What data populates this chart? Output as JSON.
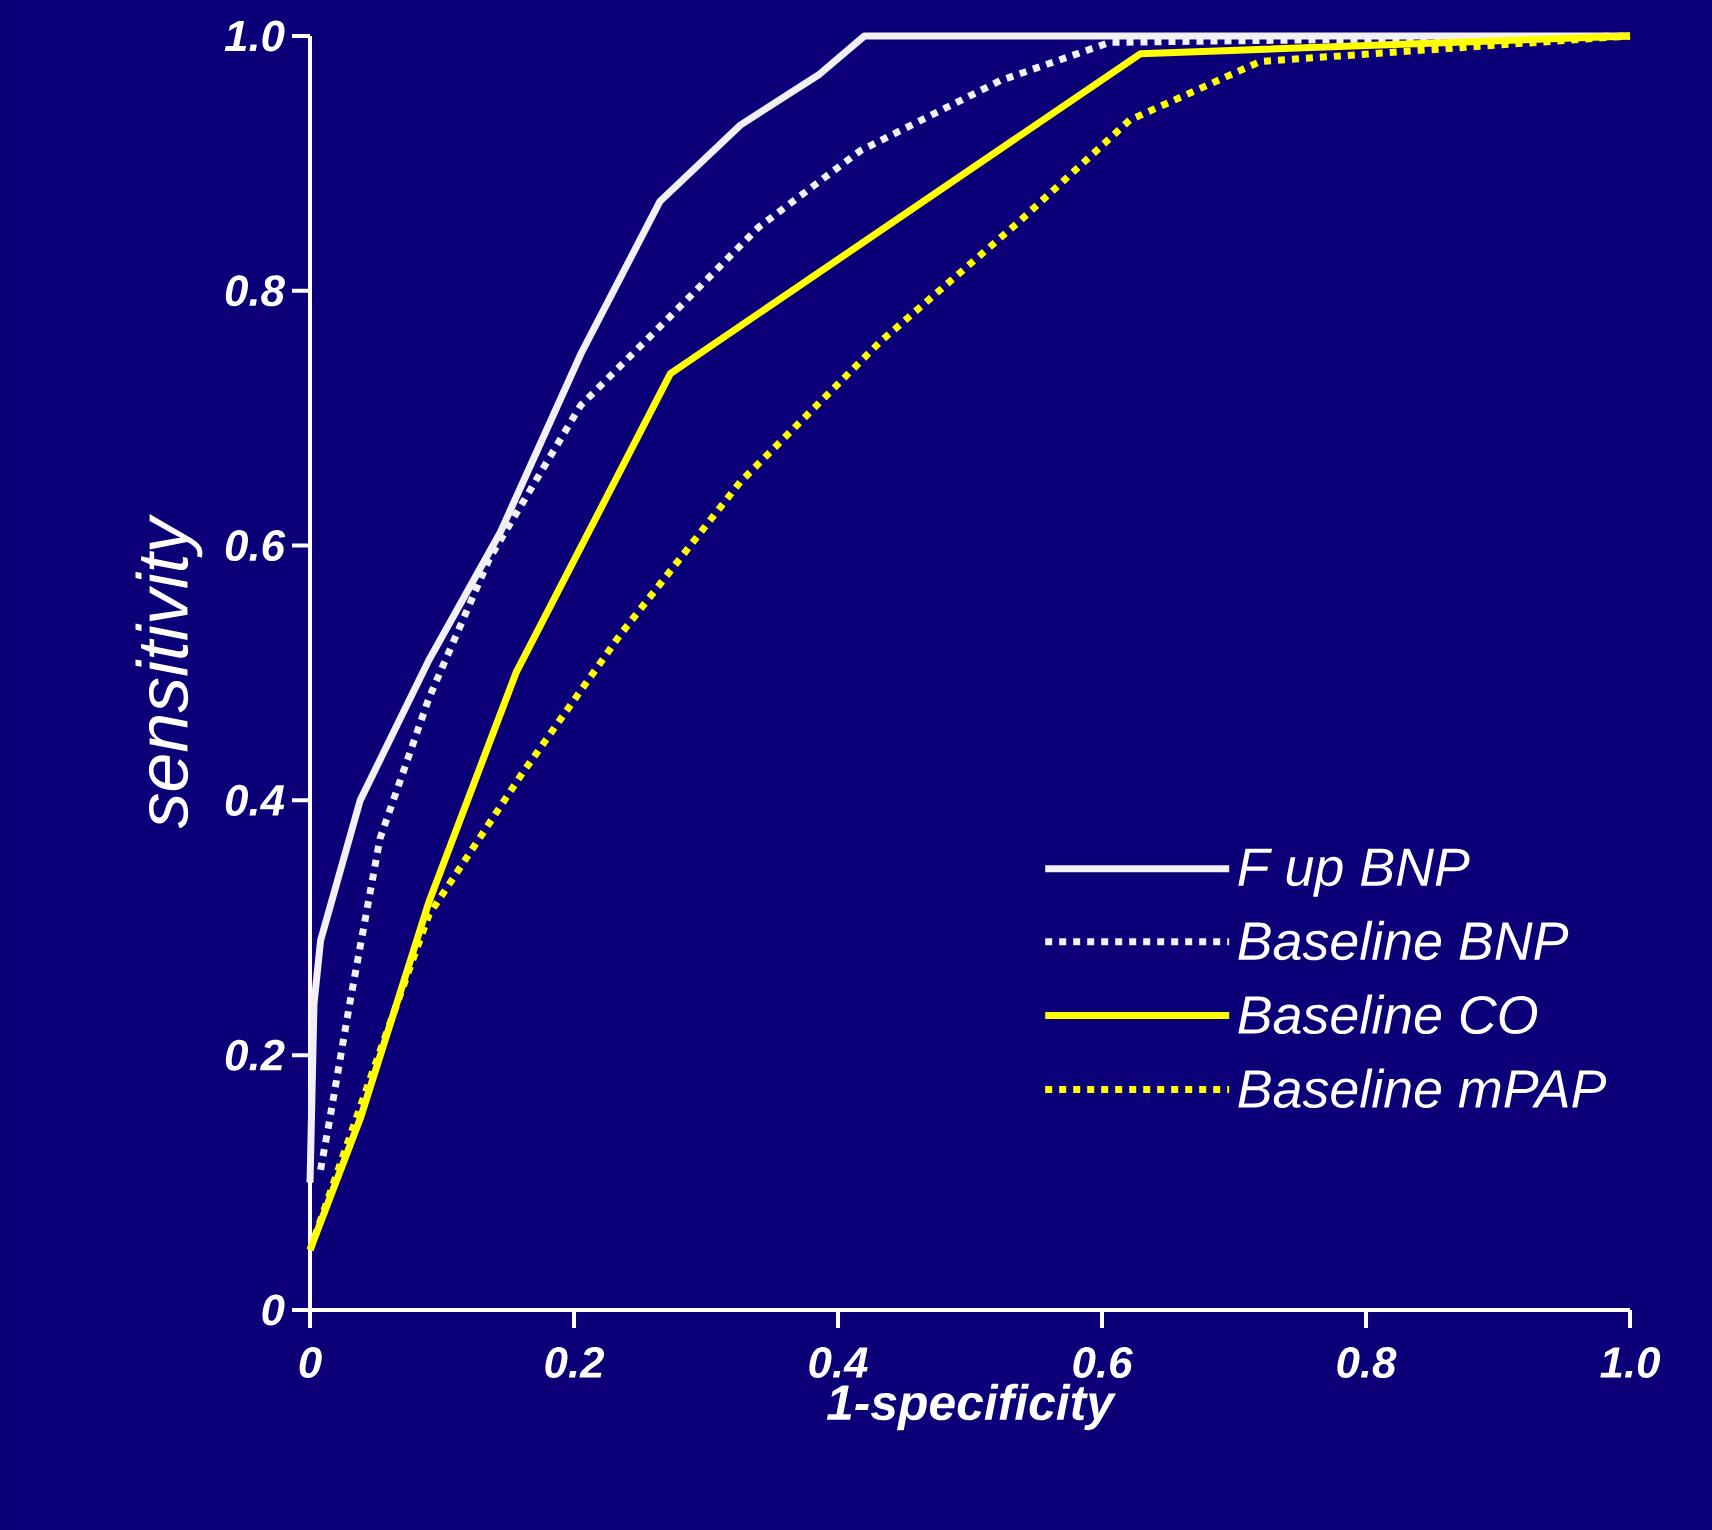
{
  "chart_data": {
    "type": "line",
    "xlabel": "1-specificity",
    "ylabel": "sensitivity",
    "xlim": [
      0,
      1
    ],
    "ylim": [
      0,
      1
    ],
    "xticks": [
      {
        "value": 0,
        "label": "0"
      },
      0.2,
      0.4,
      0.6,
      0.8,
      {
        "value": 1,
        "label": "1.0"
      }
    ],
    "yticks": [
      {
        "value": 0,
        "label": "0"
      },
      0.2,
      0.4,
      0.6,
      0.8,
      {
        "value": 1,
        "label": "1.0"
      }
    ],
    "grid": false,
    "legend": "bottom right",
    "marker": "none",
    "series": [
      {
        "name": "F up BNP",
        "color": "#f0f0f5",
        "line_style": "solid",
        "x": [
          0,
          0.003,
          0.008,
          0.038,
          0.09,
          0.144,
          0.205,
          0.265,
          0.326,
          0.386,
          0.42,
          1.0
        ],
        "values": [
          0.1,
          0.24,
          0.29,
          0.4,
          0.51,
          0.61,
          0.75,
          0.87,
          0.93,
          0.97,
          1.0,
          1.0
        ]
      },
      {
        "name": "Baseline BNP",
        "color": "#f0f0f5",
        "line_style": "dotted",
        "x": [
          0.008,
          0.015,
          0.03,
          0.053,
          0.09,
          0.136,
          0.205,
          0.273,
          0.34,
          0.417,
          0.523,
          0.606,
          1.0
        ],
        "values": [
          0.11,
          0.15,
          0.24,
          0.37,
          0.48,
          0.59,
          0.71,
          0.78,
          0.85,
          0.91,
          0.965,
          0.995,
          1.0
        ]
      },
      {
        "name": "Baseline CO",
        "color": "#ffff00",
        "line_style": "solid",
        "x": [
          0,
          0.038,
          0.09,
          0.156,
          0.273,
          0.629,
          1.0
        ],
        "values": [
          0.047,
          0.15,
          0.32,
          0.5,
          0.735,
          0.986,
          1.0
        ]
      },
      {
        "name": "Baseline mPAP",
        "color": "#ffff00",
        "line_style": "dotted",
        "x": [
          0,
          0.045,
          0.09,
          0.16,
          0.235,
          0.326,
          0.432,
          0.538,
          0.621,
          0.72,
          1.0
        ],
        "values": [
          0.047,
          0.18,
          0.31,
          0.42,
          0.53,
          0.65,
          0.76,
          0.855,
          0.934,
          0.98,
          1.0
        ]
      }
    ]
  }
}
